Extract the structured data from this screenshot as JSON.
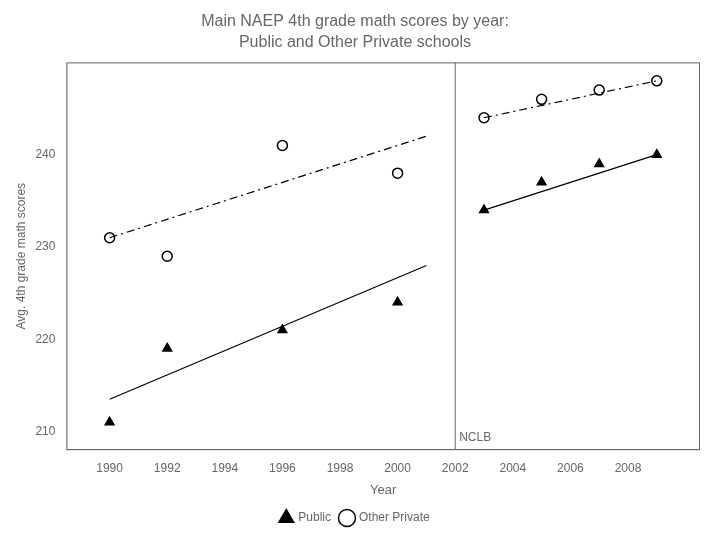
{
  "chart_data": {
    "type": "scatter",
    "title": "Main NAEP 4th grade math scores by year:",
    "subtitle": "Public and Other Private schools",
    "xlabel": "Year",
    "ylabel": "Avg. 4th grade math scores",
    "xlim": [
      1988.5,
      2010.5
    ],
    "xticks": [
      1990,
      1992,
      1994,
      1996,
      1998,
      2000,
      2002,
      2004,
      2006,
      2008
    ],
    "ylim": [
      208,
      250
    ],
    "yticks": [
      210,
      220,
      230,
      240
    ],
    "grid": false,
    "legend": "bottom",
    "x": [
      1990,
      1992,
      1996,
      2000,
      2003,
      2005,
      2007,
      2009
    ],
    "series": [
      {
        "name": "Public",
        "color": "#000000",
        "marker": "triangle",
        "line_style": "solid",
        "values": [
          211,
          219,
          221,
          224,
          234,
          237,
          239,
          240
        ],
        "trend_lines": [
          {
            "x": [
              1990,
              2001
            ],
            "values": [
              213.5,
              228
            ]
          },
          {
            "x": [
              2003,
              2009
            ],
            "values": [
              234,
              240
            ]
          }
        ]
      },
      {
        "name": "Other Private",
        "color": "#000000",
        "marker": "open_circle",
        "line_style": "dashdot",
        "values": [
          231,
          229,
          241,
          238,
          244,
          246,
          247,
          248
        ],
        "trend_lines": [
          {
            "x": [
              1990,
              2001
            ],
            "values": [
              231,
              242
            ]
          },
          {
            "x": [
              2003,
              2009
            ],
            "values": [
              244,
              248
            ]
          }
        ]
      }
    ],
    "annotations": [
      {
        "x": 2002,
        "text": "NCLB"
      }
    ]
  }
}
